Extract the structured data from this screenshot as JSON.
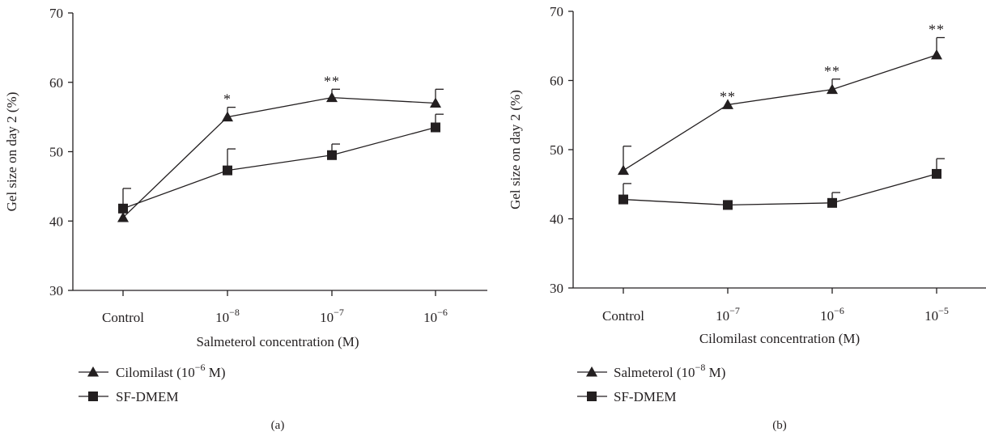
{
  "chart_data": [
    {
      "type": "line",
      "panel_label": "(a)",
      "xlabel": "Salmeterol concentration (M)",
      "ylabel": "Gel size on day 2 (%)",
      "categories": [
        {
          "base": "Control",
          "exp": ""
        },
        {
          "base": "10",
          "exp": "−8"
        },
        {
          "base": "10",
          "exp": "−7"
        },
        {
          "base": "10",
          "exp": "−6"
        }
      ],
      "ylim": [
        30,
        70
      ],
      "yticks": [
        30,
        40,
        50,
        60,
        70
      ],
      "series": [
        {
          "name_base": "Cilomilast (10",
          "name_exp": "−6",
          "name_tail": " M)",
          "marker": "triangle",
          "values": [
            40.5,
            55.0,
            57.8,
            57.0
          ],
          "errors": [
            0,
            1.4,
            1.2,
            2.0
          ],
          "significance": [
            "",
            "*",
            "**",
            ""
          ]
        },
        {
          "name_base": "SF-DMEM",
          "name_exp": "",
          "name_tail": "",
          "marker": "square",
          "values": [
            41.8,
            47.3,
            49.5,
            53.5
          ],
          "errors": [
            2.9,
            3.1,
            1.6,
            1.9
          ],
          "significance": [
            "",
            "",
            "",
            ""
          ]
        }
      ]
    },
    {
      "type": "line",
      "panel_label": "(b)",
      "xlabel": "Cilomilast concentration (M)",
      "ylabel": "Gel size on day 2 (%)",
      "categories": [
        {
          "base": "Control",
          "exp": ""
        },
        {
          "base": "10",
          "exp": "−7"
        },
        {
          "base": "10",
          "exp": "−6"
        },
        {
          "base": "10",
          "exp": "−5"
        }
      ],
      "ylim": [
        30,
        70
      ],
      "yticks": [
        30,
        40,
        50,
        60,
        70
      ],
      "series": [
        {
          "name_base": "Salmeterol (10",
          "name_exp": "−8",
          "name_tail": " M)",
          "marker": "triangle",
          "values": [
            47.0,
            56.5,
            58.7,
            63.7
          ],
          "errors": [
            3.5,
            0,
            1.5,
            2.5
          ],
          "significance": [
            "",
            "**",
            "**",
            "**"
          ]
        },
        {
          "name_base": "SF-DMEM",
          "name_exp": "",
          "name_tail": "",
          "marker": "square",
          "values": [
            42.8,
            42.0,
            42.3,
            46.5
          ],
          "errors": [
            2.3,
            0,
            1.5,
            2.2
          ],
          "significance": [
            "",
            "",
            "",
            ""
          ]
        }
      ]
    }
  ]
}
